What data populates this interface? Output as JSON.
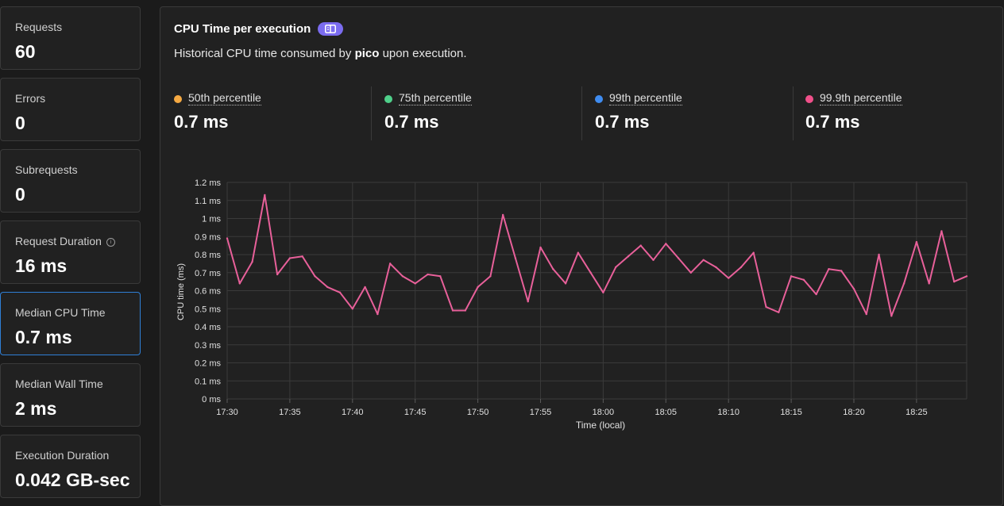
{
  "metrics": [
    {
      "label": "Requests",
      "value": "60"
    },
    {
      "label": "Errors",
      "value": "0"
    },
    {
      "label": "Subrequests",
      "value": "0"
    },
    {
      "label": "Request Duration",
      "value": "16 ms"
    },
    {
      "label": "Median CPU Time",
      "value": "0.7 ms"
    },
    {
      "label": "Median Wall Time",
      "value": "2 ms"
    },
    {
      "label": "Execution Duration",
      "value": "0.042 GB-sec"
    }
  ],
  "panel": {
    "title": "CPU Time per execution",
    "subtitle_prefix": "Historical CPU time consumed by",
    "subtitle_name": "pico",
    "subtitle_suffix": "upon execution."
  },
  "percentiles": [
    {
      "label": "50th percentile",
      "value": "0.7 ms",
      "color": "#f5a942"
    },
    {
      "label": "75th percentile",
      "value": "0.7 ms",
      "color": "#4fd08a"
    },
    {
      "label": "99th percentile",
      "value": "0.7 ms",
      "color": "#3f8cf0"
    },
    {
      "label": "99.9th percentile",
      "value": "0.7 ms",
      "color": "#f0508a"
    }
  ],
  "chart_data": {
    "type": "line",
    "xlabel": "Time (local)",
    "ylabel": "CPU time (ms)",
    "ylim": [
      0,
      1.2
    ],
    "yticks": [
      "0 ms",
      "0.1 ms",
      "0.2 ms",
      "0.3 ms",
      "0.4 ms",
      "0.5 ms",
      "0.6 ms",
      "0.7 ms",
      "0.8 ms",
      "0.9 ms",
      "1 ms",
      "1.1 ms",
      "1.2 ms"
    ],
    "xticks": [
      "17:30",
      "17:35",
      "17:40",
      "17:45",
      "17:50",
      "17:55",
      "18:00",
      "18:05",
      "18:10",
      "18:15",
      "18:20",
      "18:25"
    ],
    "xlim": [
      "17:30",
      "18:29"
    ],
    "line_color": "#e8609a",
    "grid": true,
    "series": [
      {
        "values": [
          0.89,
          0.64,
          0.76,
          1.13,
          0.69,
          0.78,
          0.79,
          0.68,
          0.62,
          0.59,
          0.5,
          0.62,
          0.47,
          0.75,
          0.68,
          0.64,
          0.69,
          0.68,
          0.49,
          0.49,
          0.62,
          0.68,
          1.02,
          0.78,
          0.54,
          0.84,
          0.72,
          0.64,
          0.81,
          0.7,
          0.59,
          0.73,
          0.79,
          0.85,
          0.77,
          0.86,
          0.78,
          0.7,
          0.77,
          0.73,
          0.67,
          0.73,
          0.81,
          0.51,
          0.48,
          0.68,
          0.66,
          0.58,
          0.72,
          0.71,
          0.61,
          0.47,
          0.8,
          0.46,
          0.64,
          0.87,
          0.64,
          0.93,
          0.65,
          0.68
        ]
      }
    ]
  }
}
